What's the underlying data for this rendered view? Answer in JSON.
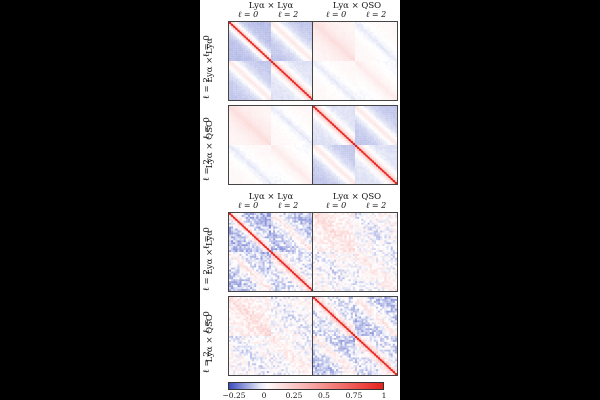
{
  "figure": {
    "blocks": [
      {
        "id": "top",
        "col_titles": [
          "Lyα × Lyα",
          "Lyα × QSO"
        ],
        "col_ells": [
          "ℓ = 0",
          "ℓ = 2"
        ],
        "row_titles": [
          "Lyα × Lyα",
          "Lyα × QSO"
        ],
        "row_ells": [
          "ℓ = 0",
          "ℓ = 2"
        ],
        "noise": "smooth"
      },
      {
        "id": "bottom",
        "col_titles": [
          "Lyα × Lyα",
          "Lyα × QSO"
        ],
        "col_ells": [
          "ℓ = 0",
          "ℓ = 2"
        ],
        "row_titles": [
          "Lyα × Lyα",
          "Lyα × QSO"
        ],
        "row_ells": [
          "ℓ = 0",
          "ℓ = 2"
        ],
        "noise": "noisy"
      }
    ],
    "colorbar": {
      "min": -0.3,
      "max": 1.0,
      "ticks": [
        "−0.25",
        "0",
        "0.25",
        "0.5",
        "0.75",
        "1"
      ],
      "tick_values": [
        -0.25,
        0,
        0.25,
        0.5,
        0.75,
        1.0
      ],
      "colors": {
        "negative": "#3b4cc0",
        "zero": "#ffffff",
        "positive": "#e8221c"
      }
    }
  }
}
